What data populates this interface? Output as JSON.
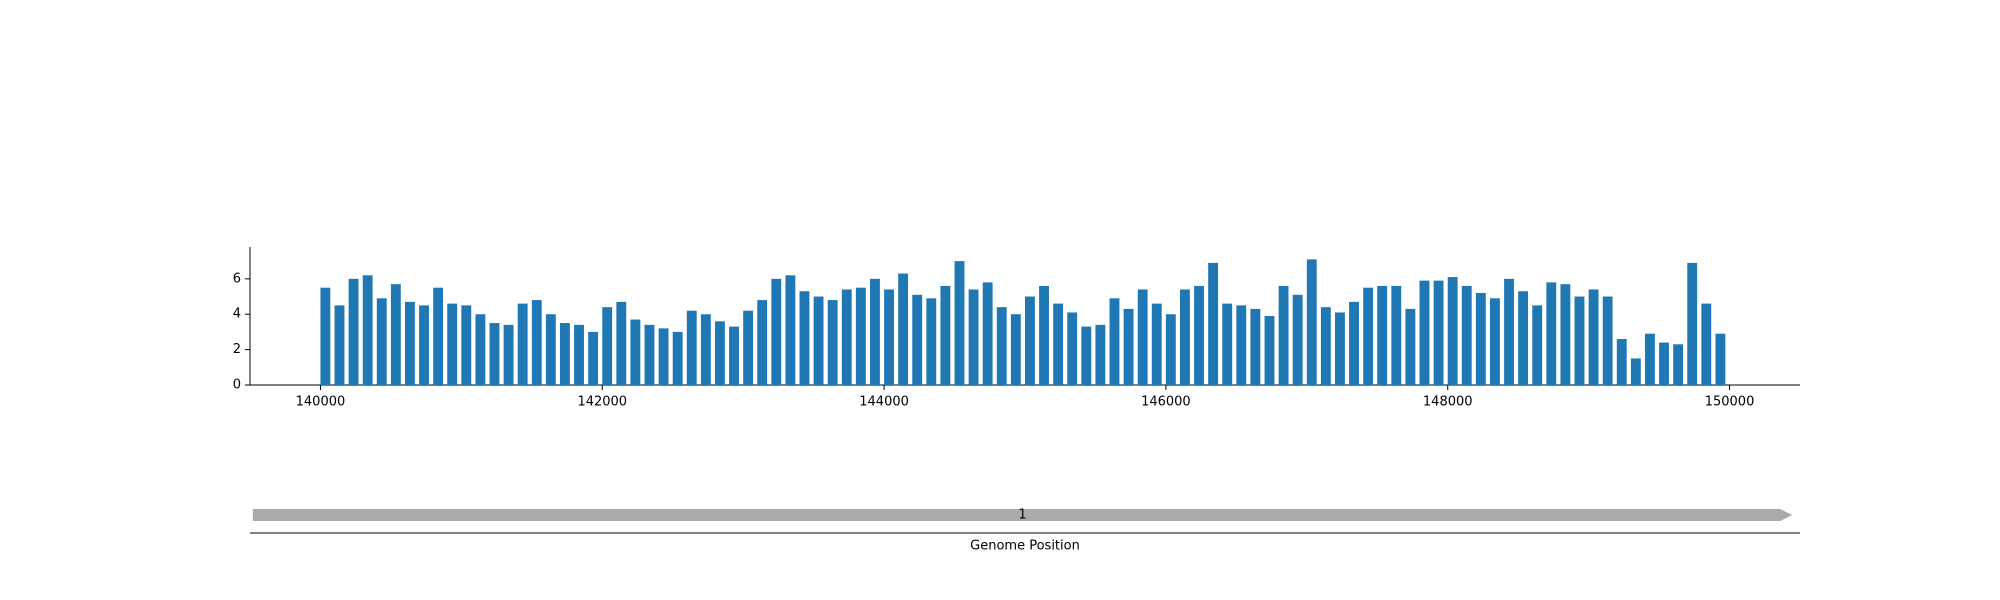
{
  "chart_data": {
    "type": "bar",
    "x": [
      140000,
      140100,
      140200,
      140300,
      140400,
      140500,
      140600,
      140700,
      140800,
      140900,
      141000,
      141100,
      141200,
      141300,
      141400,
      141500,
      141600,
      141700,
      141800,
      141900,
      142000,
      142100,
      142200,
      142300,
      142400,
      142500,
      142600,
      142700,
      142800,
      142900,
      143000,
      143100,
      143200,
      143300,
      143400,
      143500,
      143600,
      143700,
      143800,
      143900,
      144000,
      144100,
      144200,
      144300,
      144400,
      144500,
      144600,
      144700,
      144800,
      144900,
      145000,
      145100,
      145200,
      145300,
      145400,
      145500,
      145600,
      145700,
      145800,
      145900,
      146000,
      146100,
      146200,
      146300,
      146400,
      146500,
      146600,
      146700,
      146800,
      146900,
      147000,
      147100,
      147200,
      147300,
      147400,
      147500,
      147600,
      147700,
      147800,
      147900,
      148000,
      148100,
      148200,
      148300,
      148400,
      148500,
      148600,
      148700,
      148800,
      148900,
      149000,
      149100,
      149200,
      149300,
      149400,
      149500,
      149600,
      149700,
      149800,
      149900
    ],
    "values": [
      5.5,
      4.5,
      6.0,
      6.2,
      4.9,
      5.7,
      4.7,
      4.5,
      5.5,
      4.6,
      4.5,
      4.0,
      3.5,
      3.4,
      4.6,
      4.8,
      4.0,
      3.5,
      3.4,
      3.0,
      4.4,
      4.7,
      3.7,
      3.4,
      3.2,
      3.0,
      4.2,
      4.0,
      3.6,
      3.3,
      4.2,
      4.8,
      6.0,
      6.2,
      5.3,
      5.0,
      4.8,
      5.4,
      5.5,
      6.0,
      5.4,
      6.3,
      5.1,
      4.9,
      5.6,
      7.0,
      5.4,
      5.8,
      4.4,
      4.0,
      5.0,
      5.6,
      4.6,
      4.1,
      3.3,
      3.4,
      4.9,
      4.3,
      5.4,
      4.6,
      4.0,
      5.4,
      5.6,
      6.9,
      4.6,
      4.5,
      4.3,
      3.9,
      5.6,
      5.1,
      7.1,
      4.4,
      4.1,
      4.7,
      5.5,
      5.6,
      5.6,
      4.3,
      5.9,
      5.9,
      6.1,
      5.6,
      5.2,
      4.9,
      6.0,
      5.3,
      4.5,
      5.8,
      5.7,
      5.0,
      5.4,
      5.0,
      2.6,
      1.5,
      2.9,
      2.4,
      2.3,
      6.9,
      4.6,
      2.9
    ],
    "color": "#1f77b4",
    "xlim": [
      139500,
      150500
    ],
    "xticks": [
      140000,
      142000,
      144000,
      146000,
      148000,
      150000
    ],
    "ylim": [
      0,
      7.8
    ],
    "yticks": [
      0,
      2,
      4,
      6
    ],
    "features": [
      {
        "label": "1",
        "start": 139520,
        "end": 150445,
        "color": "#aaaaaa"
      }
    ],
    "xlabel": "Genome Position"
  }
}
